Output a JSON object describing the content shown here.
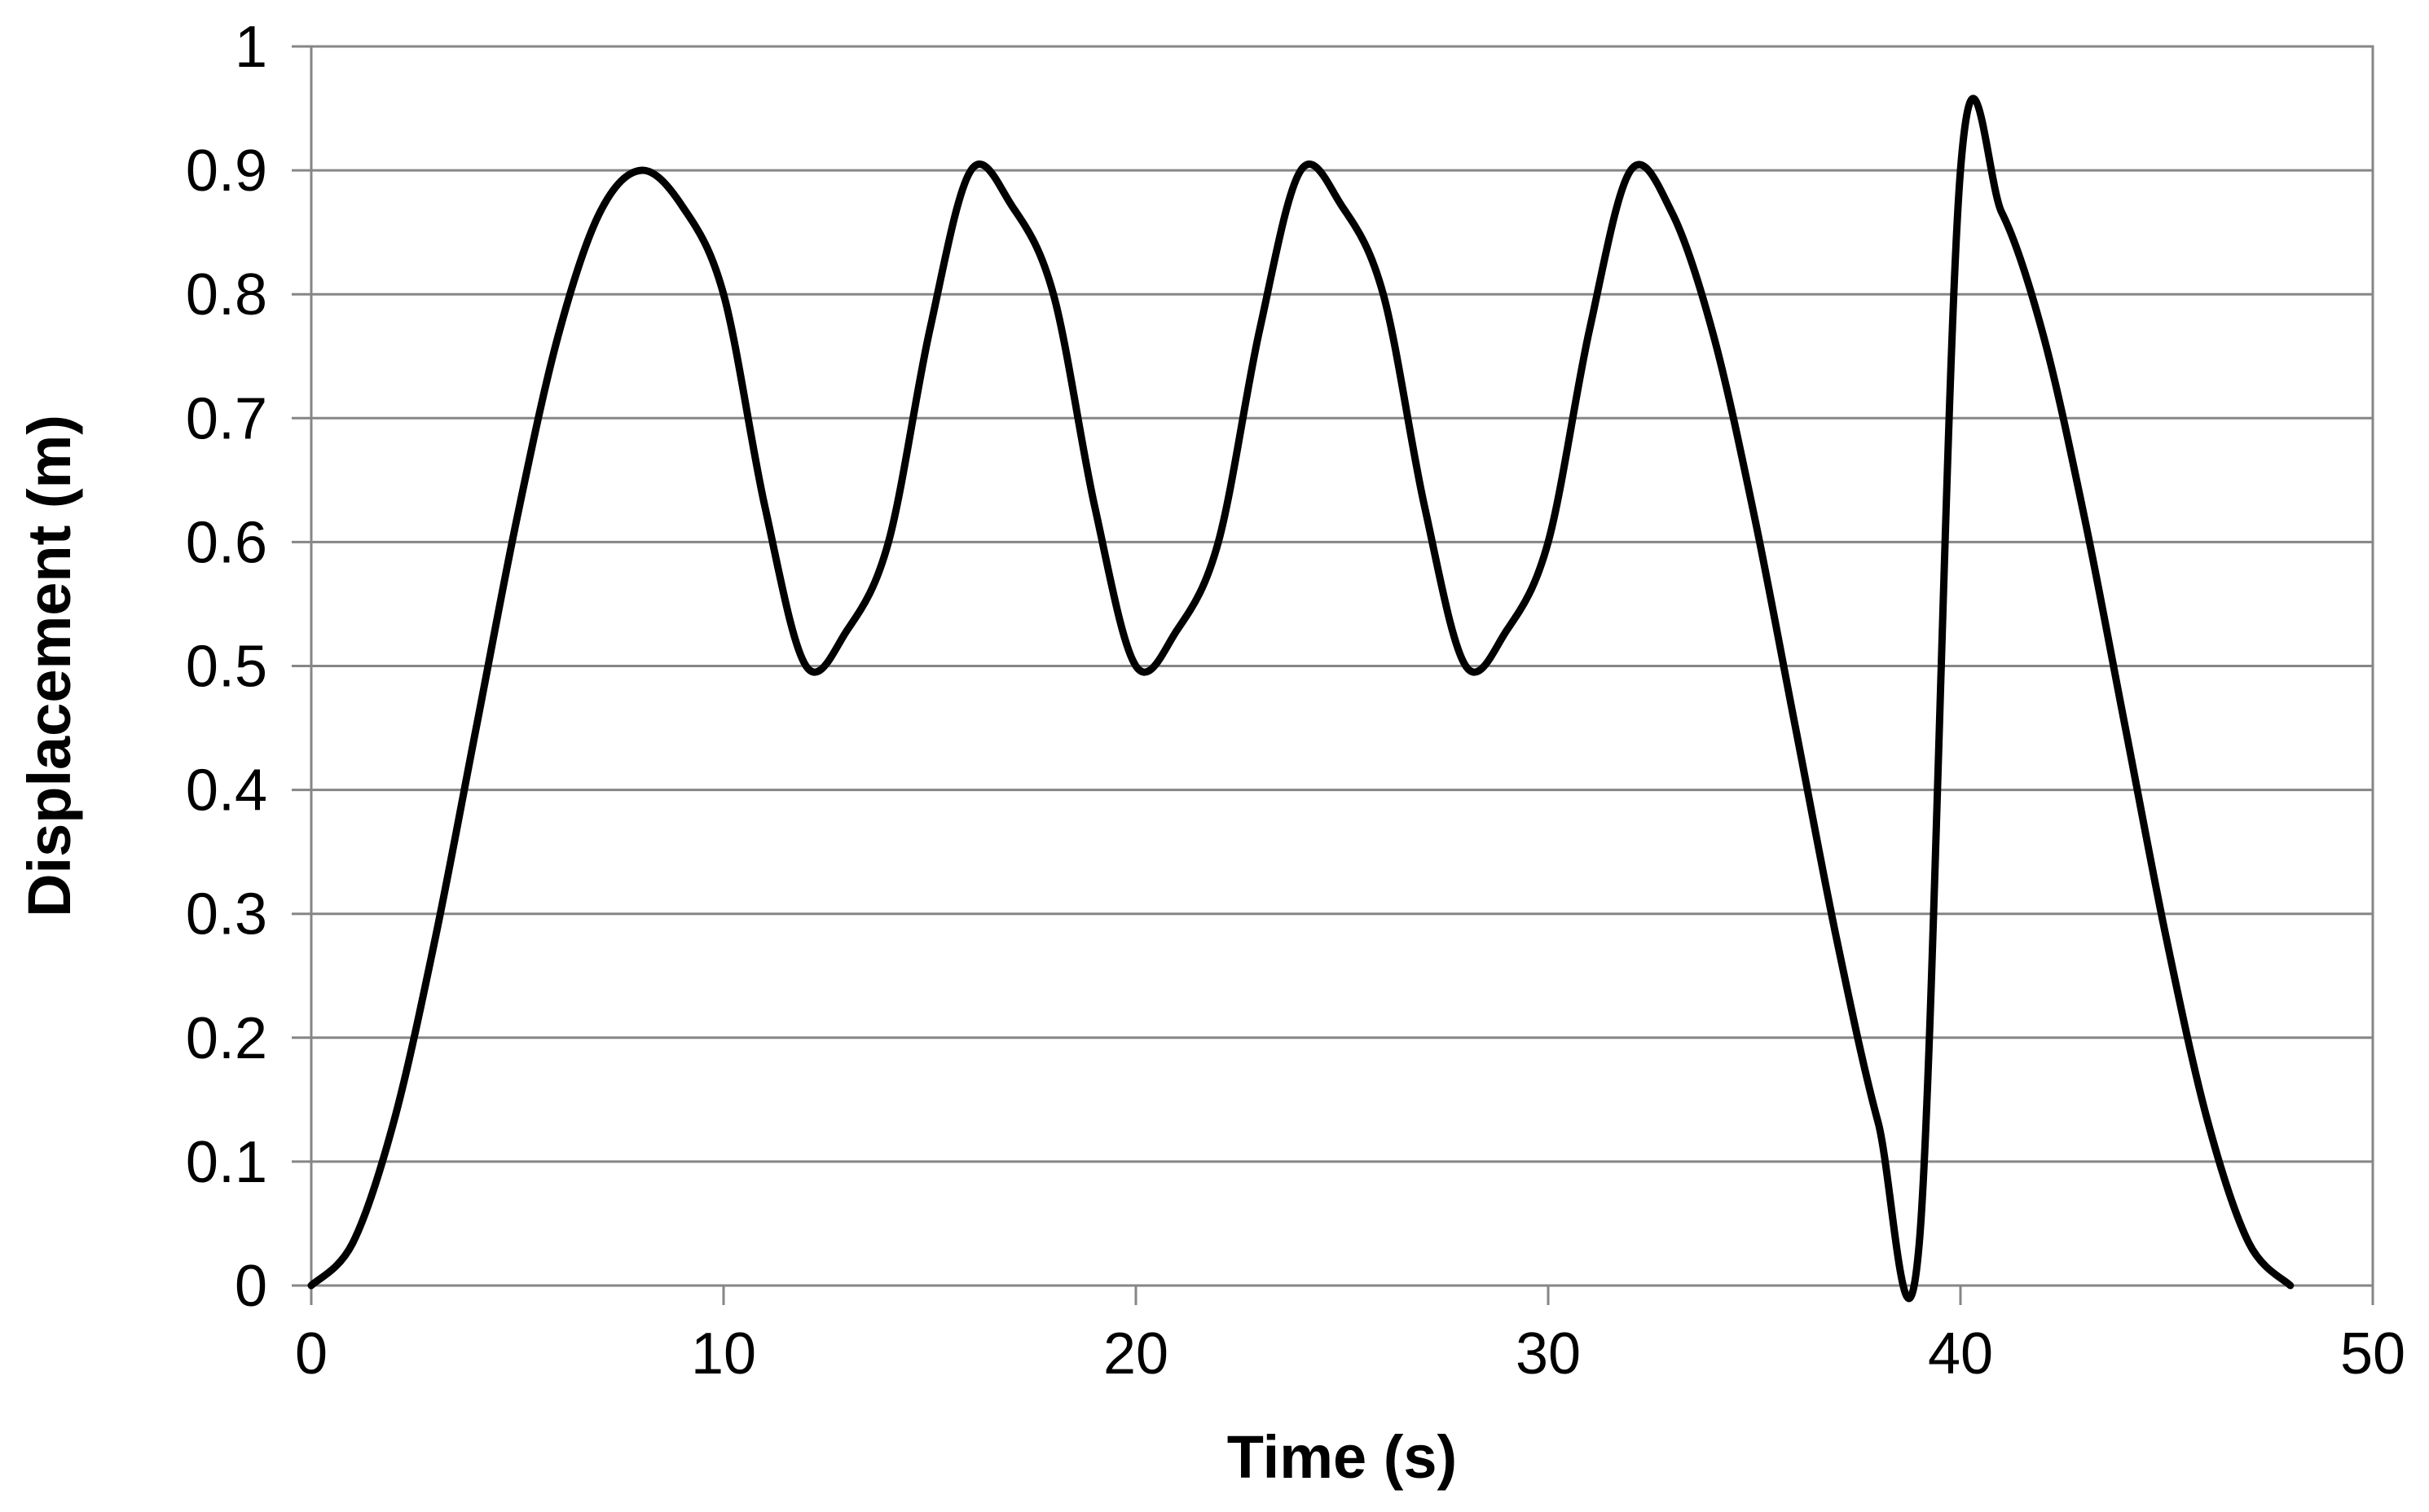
{
  "chart_data": {
    "type": "line",
    "title": "",
    "xlabel": "Time (s)",
    "ylabel": "Displacement (m)",
    "xlim": [
      0,
      50
    ],
    "ylim": [
      0,
      1
    ],
    "x_ticks": [
      "0",
      "10",
      "20",
      "30",
      "40",
      "50"
    ],
    "y_ticks": [
      "0",
      "0.1",
      "0.2",
      "0.3",
      "0.4",
      "0.5",
      "0.6",
      "0.7",
      "0.8",
      "0.9",
      "1"
    ],
    "grid": "horizontal",
    "legend": "none",
    "line_color": "#000000",
    "grid_color": "#868686",
    "series": [
      {
        "x": [
          0,
          1,
          2,
          3,
          4,
          5,
          6,
          7,
          8,
          9,
          10,
          11,
          12,
          13,
          14,
          15,
          16,
          17,
          18,
          19,
          20,
          21,
          22,
          23,
          24,
          25,
          26,
          27,
          28,
          29,
          30,
          31,
          32,
          33,
          34,
          35,
          36,
          37,
          38,
          39,
          40,
          41,
          42,
          43,
          44,
          45,
          46,
          47,
          48
        ],
        "y": [
          0,
          0.034,
          0.132,
          0.279,
          0.45,
          0.621,
          0.768,
          0.866,
          0.9,
          0.871,
          0.8,
          0.629,
          0.5,
          0.529,
          0.6,
          0.771,
          0.9,
          0.871,
          0.8,
          0.629,
          0.5,
          0.529,
          0.6,
          0.771,
          0.9,
          0.871,
          0.8,
          0.629,
          0.5,
          0.529,
          0.6,
          0.771,
          0.9,
          0.866,
          0.768,
          0.621,
          0.45,
          0.279,
          0.132,
          0.034,
          0.9,
          0.866,
          0.768,
          0.621,
          0.45,
          0.279,
          0.132,
          0.034,
          0
        ]
      }
    ]
  }
}
